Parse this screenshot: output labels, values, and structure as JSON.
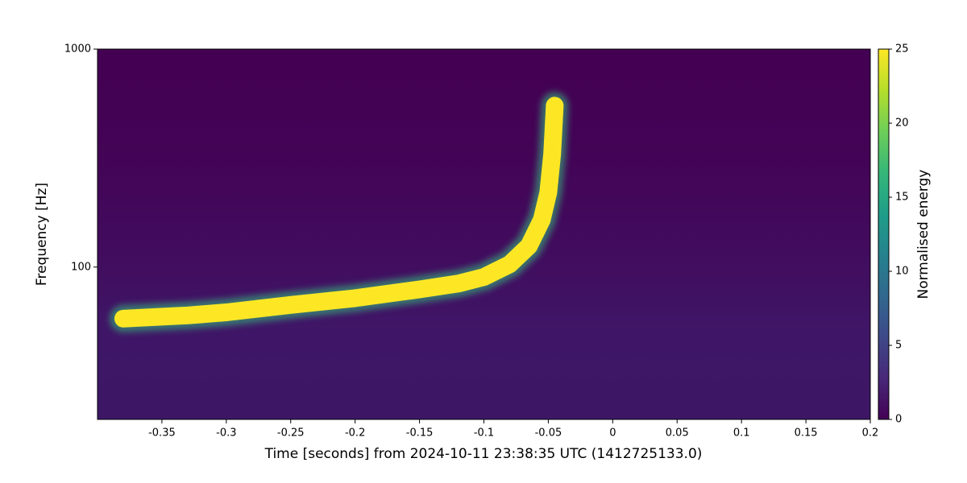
{
  "chart_data": {
    "type": "spectrogram",
    "xlabel": "Time [seconds] from 2024-10-11 23:38:35 UTC (1412725133.0)",
    "ylabel": "Frequency [Hz]",
    "xlim": [
      -0.4,
      0.2
    ],
    "xticks": [
      -0.35,
      -0.3,
      -0.25,
      -0.2,
      -0.15,
      -0.1,
      -0.05,
      0,
      0.05,
      0.1,
      0.15,
      0.2
    ],
    "ylim": [
      20,
      1000
    ],
    "yticks": [
      100,
      1000
    ],
    "ylog": true,
    "series": [
      {
        "x": [
          -0.38,
          -0.33,
          -0.3,
          -0.25,
          -0.2,
          -0.15,
          -0.12,
          -0.1,
          -0.08,
          -0.065,
          -0.055,
          -0.05,
          -0.047,
          -0.045
        ],
        "values": [
          58,
          60,
          62,
          67,
          72,
          79,
          84,
          90,
          103,
          125,
          165,
          220,
          330,
          550
        ],
        "color": "#fde725"
      }
    ],
    "colorbar": {
      "label": "Normalised energy",
      "lim": [
        0,
        25
      ],
      "ticks": [
        0,
        5,
        10,
        15,
        20,
        25
      ],
      "colors": [
        "#440154",
        "#482878",
        "#3e4989",
        "#31688e",
        "#26828e",
        "#1f9e89",
        "#35b779",
        "#6ece58",
        "#b5de2b",
        "#fde725"
      ]
    }
  }
}
